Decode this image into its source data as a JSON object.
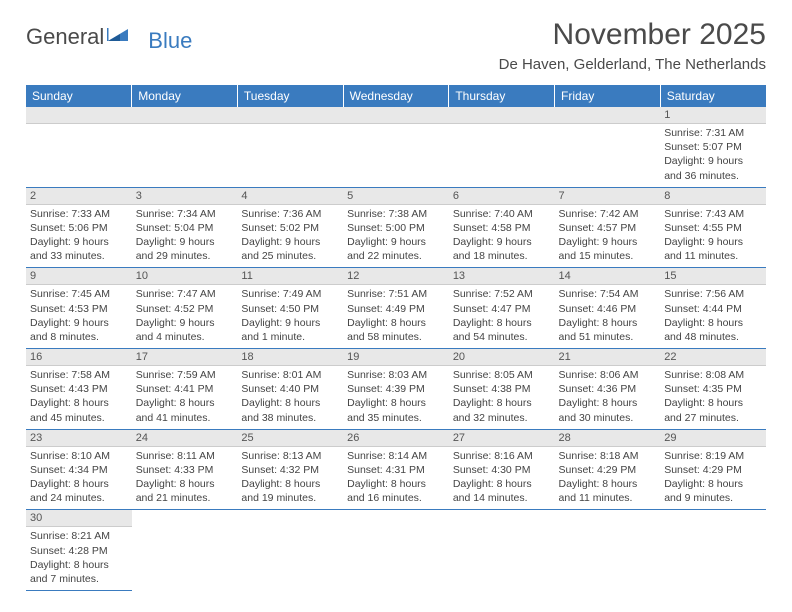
{
  "logo": {
    "part1": "General",
    "part2": "Blue"
  },
  "title": "November 2025",
  "location": "De Haven, Gelderland, The Netherlands",
  "weekdays": [
    "Sunday",
    "Monday",
    "Tuesday",
    "Wednesday",
    "Thursday",
    "Friday",
    "Saturday"
  ],
  "colors": {
    "header_bg": "#3a7bbf",
    "header_fg": "#ffffff",
    "daynum_bg": "#e8e8e8",
    "row_border": "#3a7bbf",
    "text": "#444444"
  },
  "rows": [
    [
      null,
      null,
      null,
      null,
      null,
      null,
      {
        "n": "1",
        "sr": "Sunrise: 7:31 AM",
        "ss": "Sunset: 5:07 PM",
        "d1": "Daylight: 9 hours",
        "d2": "and 36 minutes."
      }
    ],
    [
      {
        "n": "2",
        "sr": "Sunrise: 7:33 AM",
        "ss": "Sunset: 5:06 PM",
        "d1": "Daylight: 9 hours",
        "d2": "and 33 minutes."
      },
      {
        "n": "3",
        "sr": "Sunrise: 7:34 AM",
        "ss": "Sunset: 5:04 PM",
        "d1": "Daylight: 9 hours",
        "d2": "and 29 minutes."
      },
      {
        "n": "4",
        "sr": "Sunrise: 7:36 AM",
        "ss": "Sunset: 5:02 PM",
        "d1": "Daylight: 9 hours",
        "d2": "and 25 minutes."
      },
      {
        "n": "5",
        "sr": "Sunrise: 7:38 AM",
        "ss": "Sunset: 5:00 PM",
        "d1": "Daylight: 9 hours",
        "d2": "and 22 minutes."
      },
      {
        "n": "6",
        "sr": "Sunrise: 7:40 AM",
        "ss": "Sunset: 4:58 PM",
        "d1": "Daylight: 9 hours",
        "d2": "and 18 minutes."
      },
      {
        "n": "7",
        "sr": "Sunrise: 7:42 AM",
        "ss": "Sunset: 4:57 PM",
        "d1": "Daylight: 9 hours",
        "d2": "and 15 minutes."
      },
      {
        "n": "8",
        "sr": "Sunrise: 7:43 AM",
        "ss": "Sunset: 4:55 PM",
        "d1": "Daylight: 9 hours",
        "d2": "and 11 minutes."
      }
    ],
    [
      {
        "n": "9",
        "sr": "Sunrise: 7:45 AM",
        "ss": "Sunset: 4:53 PM",
        "d1": "Daylight: 9 hours",
        "d2": "and 8 minutes."
      },
      {
        "n": "10",
        "sr": "Sunrise: 7:47 AM",
        "ss": "Sunset: 4:52 PM",
        "d1": "Daylight: 9 hours",
        "d2": "and 4 minutes."
      },
      {
        "n": "11",
        "sr": "Sunrise: 7:49 AM",
        "ss": "Sunset: 4:50 PM",
        "d1": "Daylight: 9 hours",
        "d2": "and 1 minute."
      },
      {
        "n": "12",
        "sr": "Sunrise: 7:51 AM",
        "ss": "Sunset: 4:49 PM",
        "d1": "Daylight: 8 hours",
        "d2": "and 58 minutes."
      },
      {
        "n": "13",
        "sr": "Sunrise: 7:52 AM",
        "ss": "Sunset: 4:47 PM",
        "d1": "Daylight: 8 hours",
        "d2": "and 54 minutes."
      },
      {
        "n": "14",
        "sr": "Sunrise: 7:54 AM",
        "ss": "Sunset: 4:46 PM",
        "d1": "Daylight: 8 hours",
        "d2": "and 51 minutes."
      },
      {
        "n": "15",
        "sr": "Sunrise: 7:56 AM",
        "ss": "Sunset: 4:44 PM",
        "d1": "Daylight: 8 hours",
        "d2": "and 48 minutes."
      }
    ],
    [
      {
        "n": "16",
        "sr": "Sunrise: 7:58 AM",
        "ss": "Sunset: 4:43 PM",
        "d1": "Daylight: 8 hours",
        "d2": "and 45 minutes."
      },
      {
        "n": "17",
        "sr": "Sunrise: 7:59 AM",
        "ss": "Sunset: 4:41 PM",
        "d1": "Daylight: 8 hours",
        "d2": "and 41 minutes."
      },
      {
        "n": "18",
        "sr": "Sunrise: 8:01 AM",
        "ss": "Sunset: 4:40 PM",
        "d1": "Daylight: 8 hours",
        "d2": "and 38 minutes."
      },
      {
        "n": "19",
        "sr": "Sunrise: 8:03 AM",
        "ss": "Sunset: 4:39 PM",
        "d1": "Daylight: 8 hours",
        "d2": "and 35 minutes."
      },
      {
        "n": "20",
        "sr": "Sunrise: 8:05 AM",
        "ss": "Sunset: 4:38 PM",
        "d1": "Daylight: 8 hours",
        "d2": "and 32 minutes."
      },
      {
        "n": "21",
        "sr": "Sunrise: 8:06 AM",
        "ss": "Sunset: 4:36 PM",
        "d1": "Daylight: 8 hours",
        "d2": "and 30 minutes."
      },
      {
        "n": "22",
        "sr": "Sunrise: 8:08 AM",
        "ss": "Sunset: 4:35 PM",
        "d1": "Daylight: 8 hours",
        "d2": "and 27 minutes."
      }
    ],
    [
      {
        "n": "23",
        "sr": "Sunrise: 8:10 AM",
        "ss": "Sunset: 4:34 PM",
        "d1": "Daylight: 8 hours",
        "d2": "and 24 minutes."
      },
      {
        "n": "24",
        "sr": "Sunrise: 8:11 AM",
        "ss": "Sunset: 4:33 PM",
        "d1": "Daylight: 8 hours",
        "d2": "and 21 minutes."
      },
      {
        "n": "25",
        "sr": "Sunrise: 8:13 AM",
        "ss": "Sunset: 4:32 PM",
        "d1": "Daylight: 8 hours",
        "d2": "and 19 minutes."
      },
      {
        "n": "26",
        "sr": "Sunrise: 8:14 AM",
        "ss": "Sunset: 4:31 PM",
        "d1": "Daylight: 8 hours",
        "d2": "and 16 minutes."
      },
      {
        "n": "27",
        "sr": "Sunrise: 8:16 AM",
        "ss": "Sunset: 4:30 PM",
        "d1": "Daylight: 8 hours",
        "d2": "and 14 minutes."
      },
      {
        "n": "28",
        "sr": "Sunrise: 8:18 AM",
        "ss": "Sunset: 4:29 PM",
        "d1": "Daylight: 8 hours",
        "d2": "and 11 minutes."
      },
      {
        "n": "29",
        "sr": "Sunrise: 8:19 AM",
        "ss": "Sunset: 4:29 PM",
        "d1": "Daylight: 8 hours",
        "d2": "and 9 minutes."
      }
    ],
    [
      {
        "n": "30",
        "sr": "Sunrise: 8:21 AM",
        "ss": "Sunset: 4:28 PM",
        "d1": "Daylight: 8 hours",
        "d2": "and 7 minutes."
      },
      null,
      null,
      null,
      null,
      null,
      null
    ]
  ]
}
